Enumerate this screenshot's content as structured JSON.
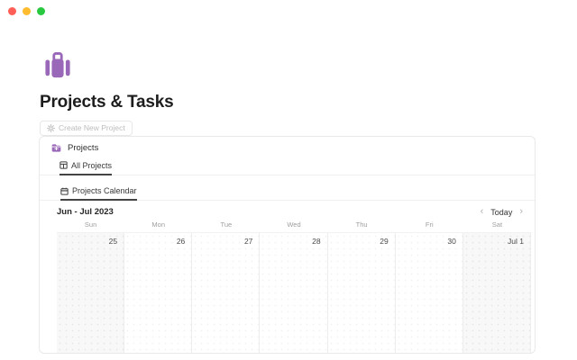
{
  "window": {
    "controls": [
      {
        "name": "close",
        "color": "#ff5f57"
      },
      {
        "name": "minimize",
        "color": "#febc2e"
      },
      {
        "name": "maximize",
        "color": "#28c840"
      }
    ]
  },
  "page": {
    "icon": "briefcase-icon",
    "icon_color": "#9a68b8",
    "title": "Projects & Tasks",
    "create_button": {
      "icon": "gear-icon",
      "label": "Create New Project"
    }
  },
  "projects": {
    "section": {
      "icon": "projects-database-icon",
      "title": "Projects"
    },
    "view_tab": {
      "icon": "table-view-icon",
      "label": "All Projects",
      "active": true
    },
    "calendar_tab": {
      "icon": "calendar-icon",
      "label": "Projects Calendar",
      "active": true
    },
    "toolbar": {
      "month_label": "Jun - Jul 2023",
      "prev_symbol": "‹",
      "today_label": "Today",
      "next_symbol": "›"
    },
    "day_headers": [
      "Sun",
      "Mon",
      "Tue",
      "Wed",
      "Thu",
      "Fri",
      "Sat"
    ],
    "week_dates": [
      {
        "label": "25",
        "weekend": true
      },
      {
        "label": "26",
        "weekend": false
      },
      {
        "label": "27",
        "weekend": false
      },
      {
        "label": "28",
        "weekend": false
      },
      {
        "label": "29",
        "weekend": false
      },
      {
        "label": "30",
        "weekend": false
      },
      {
        "label": "Jul 1",
        "weekend": true
      }
    ]
  },
  "colors": {
    "accent_purple": "#9a68b8",
    "weekend_bg": "#f8f8f8",
    "card_border": "#e9e9e9",
    "muted_text": "#9e9e9e"
  }
}
